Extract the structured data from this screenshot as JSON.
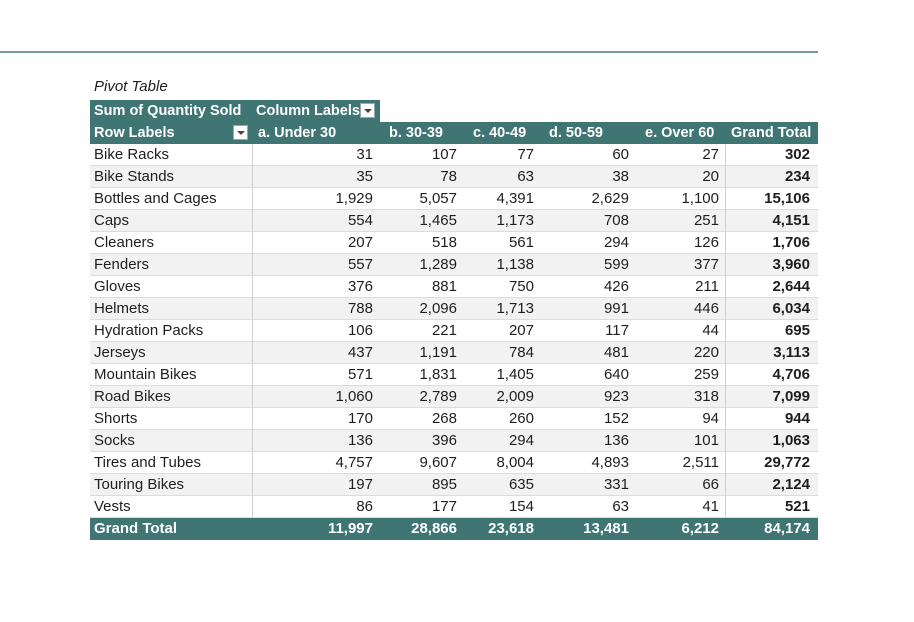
{
  "caption": "Pivot Table",
  "header": {
    "values_label": "Sum of Quantity Sold",
    "column_labels": "Column Labels",
    "row_labels": "Row Labels",
    "columns": [
      "a. Under 30",
      "b. 30-39",
      "c. 40-49",
      "d. 50-59",
      "e. Over 60"
    ],
    "grand_total": "Grand Total"
  },
  "rows": [
    {
      "label": "Bike Racks",
      "values": [
        "31",
        "107",
        "77",
        "60",
        "27"
      ],
      "total": "302"
    },
    {
      "label": "Bike Stands",
      "values": [
        "35",
        "78",
        "63",
        "38",
        "20"
      ],
      "total": "234"
    },
    {
      "label": "Bottles and Cages",
      "values": [
        "1,929",
        "5,057",
        "4,391",
        "2,629",
        "1,100"
      ],
      "total": "15,106"
    },
    {
      "label": "Caps",
      "values": [
        "554",
        "1,465",
        "1,173",
        "708",
        "251"
      ],
      "total": "4,151"
    },
    {
      "label": "Cleaners",
      "values": [
        "207",
        "518",
        "561",
        "294",
        "126"
      ],
      "total": "1,706"
    },
    {
      "label": "Fenders",
      "values": [
        "557",
        "1,289",
        "1,138",
        "599",
        "377"
      ],
      "total": "3,960"
    },
    {
      "label": "Gloves",
      "values": [
        "376",
        "881",
        "750",
        "426",
        "211"
      ],
      "total": "2,644"
    },
    {
      "label": "Helmets",
      "values": [
        "788",
        "2,096",
        "1,713",
        "991",
        "446"
      ],
      "total": "6,034"
    },
    {
      "label": "Hydration Packs",
      "values": [
        "106",
        "221",
        "207",
        "117",
        "44"
      ],
      "total": "695"
    },
    {
      "label": "Jerseys",
      "values": [
        "437",
        "1,191",
        "784",
        "481",
        "220"
      ],
      "total": "3,113"
    },
    {
      "label": "Mountain Bikes",
      "values": [
        "571",
        "1,831",
        "1,405",
        "640",
        "259"
      ],
      "total": "4,706"
    },
    {
      "label": "Road Bikes",
      "values": [
        "1,060",
        "2,789",
        "2,009",
        "923",
        "318"
      ],
      "total": "7,099"
    },
    {
      "label": "Shorts",
      "values": [
        "170",
        "268",
        "260",
        "152",
        "94"
      ],
      "total": "944"
    },
    {
      "label": "Socks",
      "values": [
        "136",
        "396",
        "294",
        "136",
        "101"
      ],
      "total": "1,063"
    },
    {
      "label": "Tires and Tubes",
      "values": [
        "4,757",
        "9,607",
        "8,004",
        "4,893",
        "2,511"
      ],
      "total": "29,772"
    },
    {
      "label": "Touring Bikes",
      "values": [
        "197",
        "895",
        "635",
        "331",
        "66"
      ],
      "total": "2,124"
    },
    {
      "label": "Vests",
      "values": [
        "86",
        "177",
        "154",
        "63",
        "41"
      ],
      "total": "521"
    }
  ],
  "grand_total_row": {
    "label": "Grand Total",
    "values": [
      "11,997",
      "28,866",
      "23,618",
      "13,481",
      "6,212"
    ],
    "total": "84,174"
  },
  "colors": {
    "header_bg": "#3f7674",
    "header_text": "#ffffff",
    "stripe": "#f2f2f2",
    "rule": "#6f9c9a"
  }
}
